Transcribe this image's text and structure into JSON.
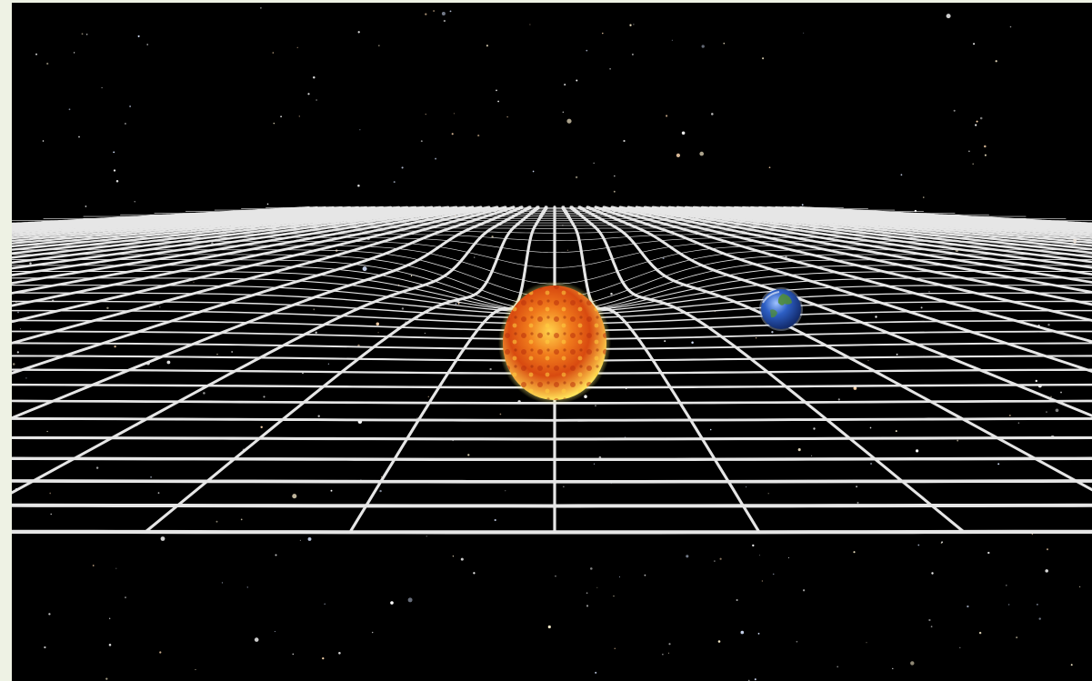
{
  "image": {
    "subject": "spacetime-curvature-illustration",
    "background_color": "#000000",
    "frame_color": "#eef2e4",
    "grid_color": "#e6e6e6",
    "sun": {
      "core_color": "#d84a10",
      "rim_color": "#ffe45a",
      "glow_color": "#fff27a"
    },
    "earth": {
      "ocean_color": "#2d5fc4",
      "land_color": "#4f8c3a",
      "highlight_color": "#9fc2ff"
    }
  }
}
